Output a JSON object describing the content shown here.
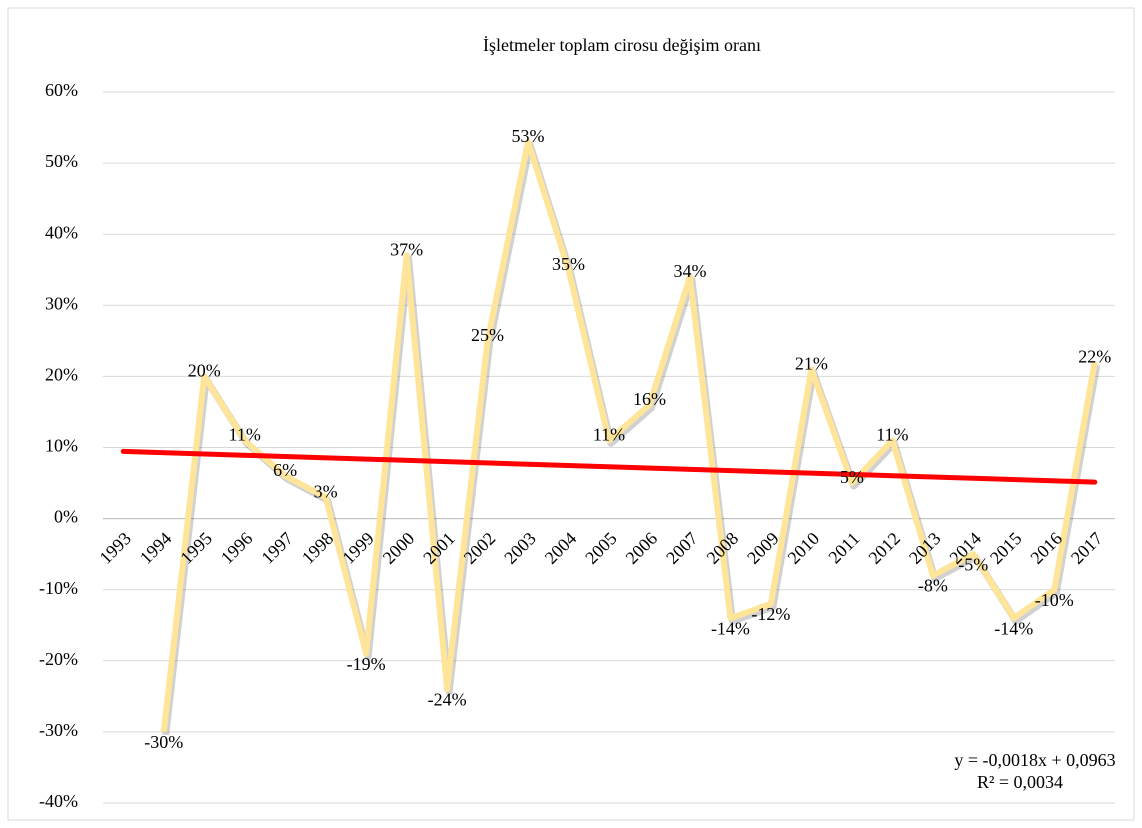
{
  "chart_data": {
    "type": "line",
    "title": "İşletmeler toplam cirosu değişim oranı",
    "categories": [
      "1993",
      "1994",
      "1995",
      "1996",
      "1997",
      "1998",
      "1999",
      "2000",
      "2001",
      "2002",
      "2003",
      "2004",
      "2005",
      "2006",
      "2007",
      "2008",
      "2009",
      "2010",
      "2011",
      "2012",
      "2013",
      "2014",
      "2015",
      "2016",
      "2017"
    ],
    "series": [
      {
        "name": "İşletmeler toplam cirosu değişim oranı",
        "color": "#ffe599",
        "values": [
          null,
          -30,
          20,
          11,
          6,
          3,
          -19,
          37,
          -24,
          25,
          53,
          35,
          11,
          16,
          34,
          -14,
          -12,
          21,
          5,
          11,
          -8,
          -5,
          -14,
          -10,
          22
        ],
        "value_labels": [
          null,
          "-30%",
          "20%",
          "11%",
          "6%",
          "3%",
          "-19%",
          "37%",
          "-24%",
          "25%",
          "53%",
          "35%",
          "11%",
          "16%",
          "34%",
          "-14%",
          "-12%",
          "21%",
          "5%",
          "11%",
          "-8%",
          "-5%",
          "-14%",
          "-10%",
          "22%"
        ]
      }
    ],
    "trendline": {
      "color": "#ff0000",
      "values": [
        9.45,
        5.13
      ],
      "equation": "y = -0,0018x + 0,0963",
      "r_squared": "R² = 0,0034"
    },
    "ylim": [
      -40,
      60
    ],
    "yticks": [
      {
        "value": -40,
        "label": "-40%"
      },
      {
        "value": -30,
        "label": "-30%"
      },
      {
        "value": -20,
        "label": "-20%"
      },
      {
        "value": -10,
        "label": "-10%"
      },
      {
        "value": 0,
        "label": "0%"
      },
      {
        "value": 10,
        "label": "10%"
      },
      {
        "value": 20,
        "label": "20%"
      },
      {
        "value": 30,
        "label": "30%"
      },
      {
        "value": 40,
        "label": "40%"
      },
      {
        "value": 50,
        "label": "50%"
      },
      {
        "value": 60,
        "label": "60%"
      }
    ],
    "grid": true
  }
}
